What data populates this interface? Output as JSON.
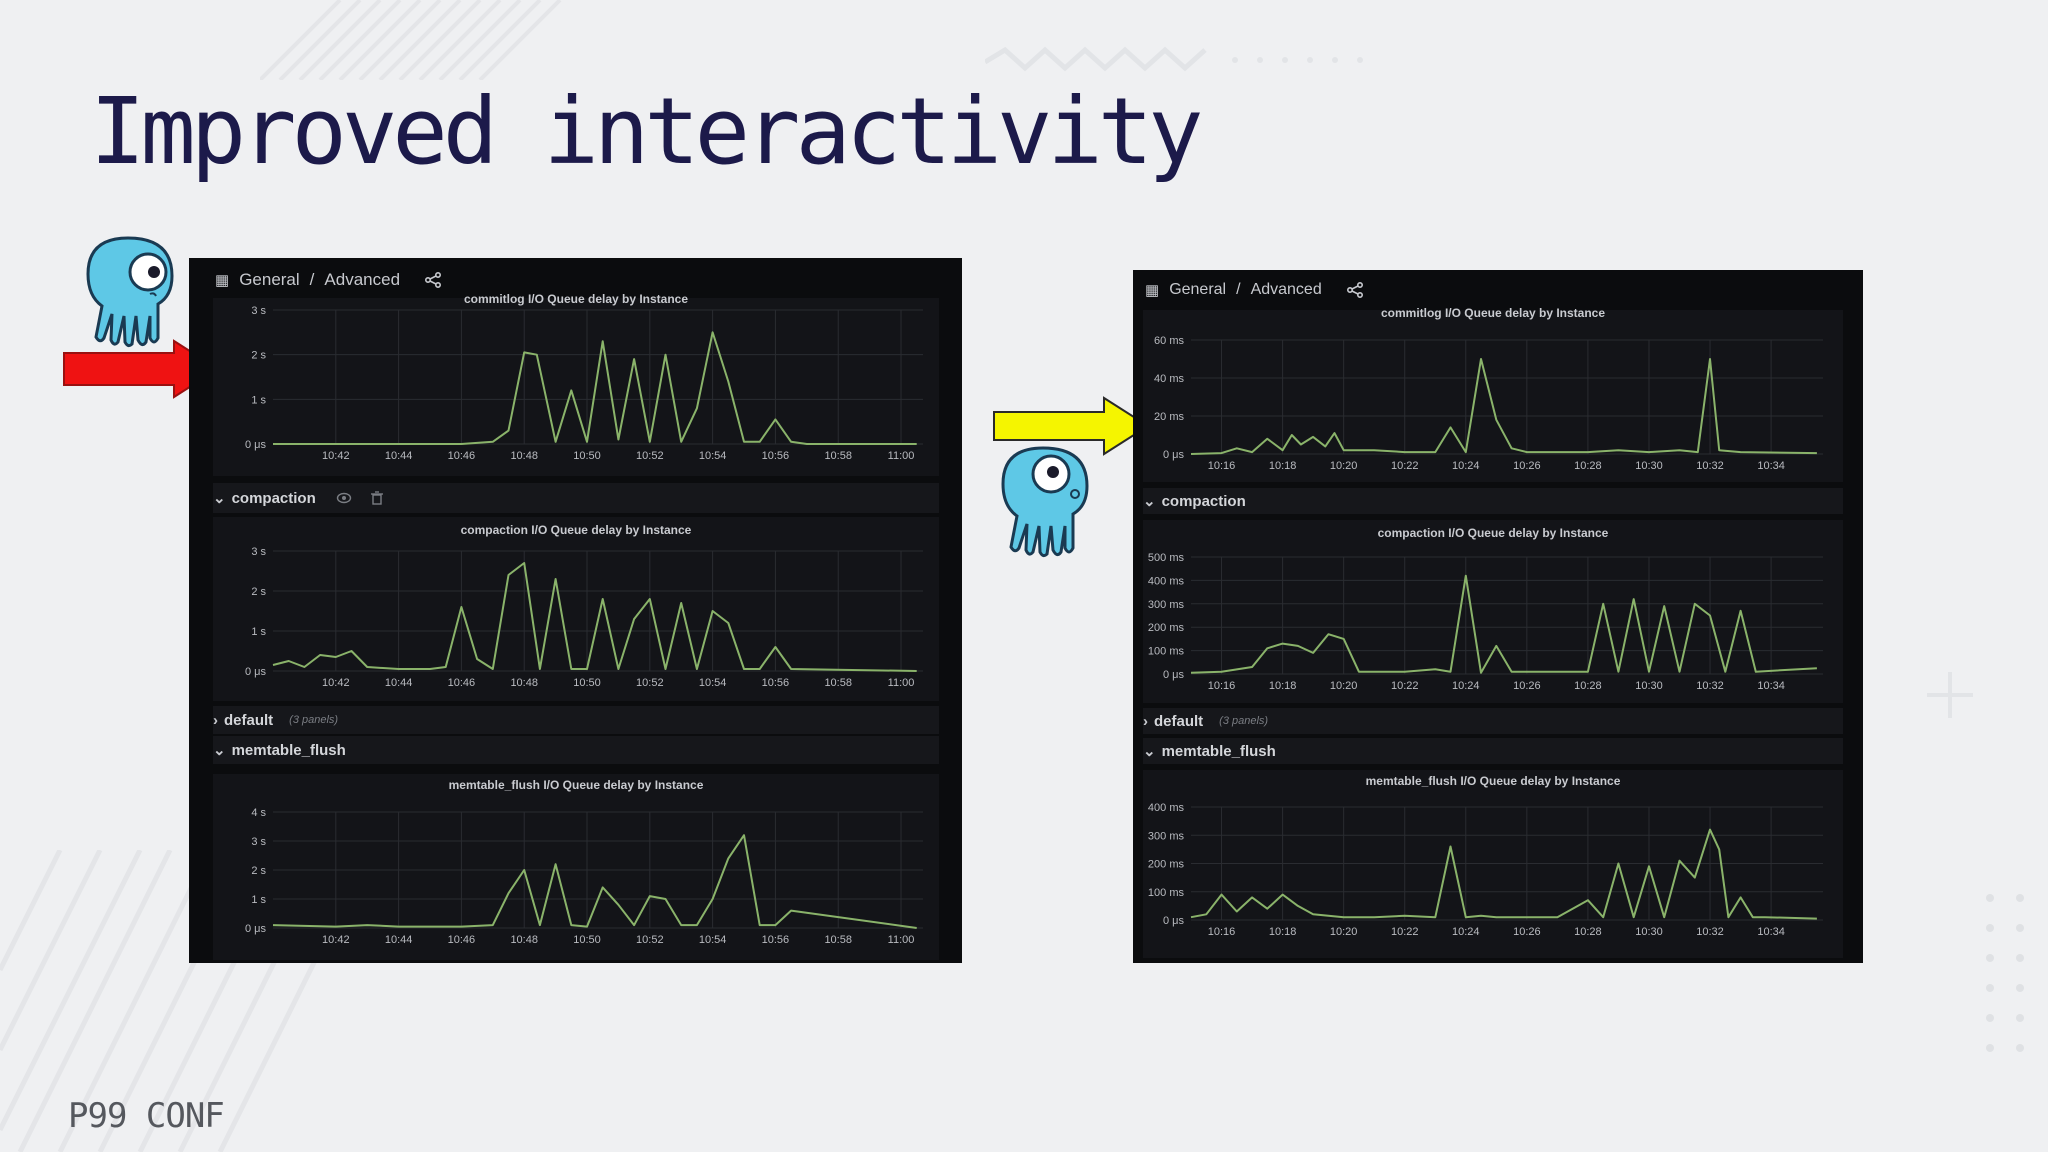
{
  "slide": {
    "title": "Improved interactivity",
    "footer": "P99 CONF"
  },
  "colors": {
    "title": "#1c1a4a",
    "line": "#8ab36a",
    "red_arrow": "#ef1212",
    "yellow_arrow": "#f5f500",
    "mascot": "#5ec8e6"
  },
  "dashboards": [
    {
      "breadcrumb": [
        "General",
        "/",
        "Advanced"
      ],
      "share_icon": "share-icon",
      "panels": [
        {
          "title": "commitlog I/O Queue delay by Instance",
          "yticks": [
            "3 s",
            "2 s",
            "1 s",
            "0 μs"
          ],
          "xticks": [
            "10:42",
            "10:44",
            "10:46",
            "10:48",
            "10:50",
            "10:52",
            "10:54",
            "10:56",
            "10:58",
            "11:00"
          ],
          "chart_data": {
            "type": "line",
            "unit": "s",
            "ylim": [
              0,
              3
            ],
            "x": [
              "10:40",
              "10:41",
              "10:42",
              "10:43",
              "10:44",
              "10:45",
              "10:46",
              "10:47",
              "10:47.5",
              "10:48",
              "10:48.4",
              "10:49",
              "10:49.5",
              "10:50",
              "10:50.5",
              "10:51",
              "10:51.5",
              "10:52",
              "10:52.5",
              "10:53",
              "10:53.5",
              "10:54",
              "10:54.5",
              "10:55",
              "10:55.5",
              "10:56",
              "10:56.5",
              "10:57",
              "11:00.5"
            ],
            "y": [
              0,
              0,
              0,
              0,
              0,
              0,
              0,
              0.05,
              0.3,
              2.05,
              2.0,
              0.05,
              1.2,
              0.05,
              2.3,
              0.1,
              1.9,
              0.05,
              2.0,
              0.05,
              0.8,
              2.5,
              1.4,
              0.05,
              0.05,
              0.55,
              0.05,
              0,
              0
            ]
          }
        }
      ],
      "rows": [
        {
          "label": "compaction",
          "note": "",
          "icons": [
            "eye-icon",
            "trash-icon"
          ]
        },
        {
          "label": "default",
          "note": "(3 panels)"
        },
        {
          "label": "memtable_flush",
          "note": ""
        }
      ],
      "panels2": [
        {
          "title": "compaction I/O Queue delay by Instance",
          "yticks": [
            "3 s",
            "2 s",
            "1 s",
            "0 μs"
          ],
          "xticks": [
            "10:42",
            "10:44",
            "10:46",
            "10:48",
            "10:50",
            "10:52",
            "10:54",
            "10:56",
            "10:58",
            "11:00"
          ],
          "chart_data": {
            "type": "line",
            "unit": "s",
            "ylim": [
              0,
              3
            ],
            "x": [
              "10:40",
              "10:40.5",
              "10:41",
              "10:41.5",
              "10:42",
              "10:42.5",
              "10:43",
              "10:44",
              "10:45",
              "10:45.5",
              "10:46",
              "10:46.5",
              "10:47",
              "10:47.5",
              "10:48",
              "10:48.5",
              "10:49",
              "10:49.5",
              "10:50",
              "10:50.5",
              "10:51",
              "10:51.5",
              "10:52",
              "10:52.5",
              "10:53",
              "10:53.5",
              "10:54",
              "10:54.5",
              "10:55",
              "10:55.5",
              "10:56",
              "10:56.5",
              "11:00.5"
            ],
            "y": [
              0.15,
              0.25,
              0.1,
              0.4,
              0.35,
              0.5,
              0.1,
              0.05,
              0.05,
              0.1,
              1.6,
              0.3,
              0.05,
              2.4,
              2.7,
              0.05,
              2.3,
              0.05,
              0.05,
              1.8,
              0.05,
              1.3,
              1.8,
              0.05,
              1.7,
              0.05,
              1.5,
              1.2,
              0.05,
              0.05,
              0.6,
              0.05,
              0
            ]
          }
        },
        {
          "title": "memtable_flush I/O Queue delay by Instance",
          "yticks": [
            "4 s",
            "3 s",
            "2 s",
            "1 s",
            "0 μs"
          ],
          "xticks": [
            "10:42",
            "10:44",
            "10:46",
            "10:48",
            "10:50",
            "10:52",
            "10:54",
            "10:56",
            "10:58",
            "11:00"
          ],
          "chart_data": {
            "type": "line",
            "unit": "s",
            "ylim": [
              0,
              4
            ],
            "x": [
              "10:40",
              "10:42",
              "10:43",
              "10:44",
              "10:46",
              "10:47",
              "10:47.5",
              "10:48",
              "10:48.5",
              "10:49",
              "10:49.5",
              "10:50",
              "10:50.5",
              "10:51",
              "10:51.5",
              "10:52",
              "10:52.5",
              "10:53",
              "10:53.5",
              "10:54",
              "10:54.5",
              "10:55",
              "10:55.5",
              "10:56",
              "10:56.5",
              "11:00.5"
            ],
            "y": [
              0.1,
              0.05,
              0.1,
              0.05,
              0.05,
              0.1,
              1.2,
              2.0,
              0.1,
              2.2,
              0.1,
              0.05,
              1.4,
              0.8,
              0.1,
              1.1,
              1.0,
              0.1,
              0.1,
              1.0,
              2.4,
              3.2,
              0.1,
              0.1,
              0.6,
              0
            ]
          }
        }
      ]
    },
    {
      "breadcrumb": [
        "General",
        "/",
        "Advanced"
      ],
      "share_icon": "share-icon",
      "panels": [
        {
          "title": "commitlog I/O Queue delay by Instance",
          "yticks": [
            "60 ms",
            "40 ms",
            "20 ms",
            "0 μs"
          ],
          "xticks": [
            "10:16",
            "10:18",
            "10:20",
            "10:22",
            "10:24",
            "10:26",
            "10:28",
            "10:30",
            "10:32",
            "10:34"
          ],
          "chart_data": {
            "type": "line",
            "unit": "ms",
            "ylim": [
              0,
              60
            ],
            "x": [
              "10:15",
              "10:16",
              "10:16.5",
              "10:17",
              "10:17.5",
              "10:18",
              "10:18.3",
              "10:18.6",
              "10:19",
              "10:19.4",
              "10:19.7",
              "10:20",
              "10:21",
              "10:22",
              "10:23",
              "10:23.5",
              "10:24",
              "10:24.5",
              "10:25",
              "10:25.5",
              "10:26",
              "10:27",
              "10:28",
              "10:29",
              "10:30",
              "10:31",
              "10:31.6",
              "10:32",
              "10:32.3",
              "10:33",
              "10:35.5"
            ],
            "y": [
              0,
              0.5,
              3,
              1,
              8,
              2,
              10,
              5,
              9,
              4,
              11,
              2,
              2,
              1,
              1,
              14,
              1,
              50,
              18,
              3,
              1,
              1,
              1,
              2,
              1,
              2,
              1,
              50,
              2,
              1,
              0.5
            ]
          }
        }
      ],
      "rows": [
        {
          "label": "compaction",
          "note": ""
        },
        {
          "label": "default",
          "note": "(3 panels)"
        },
        {
          "label": "memtable_flush",
          "note": ""
        }
      ],
      "panels2": [
        {
          "title": "compaction I/O Queue delay by Instance",
          "yticks": [
            "500 ms",
            "400 ms",
            "300 ms",
            "200 ms",
            "100 ms",
            "0 μs"
          ],
          "xticks": [
            "10:16",
            "10:18",
            "10:20",
            "10:22",
            "10:24",
            "10:26",
            "10:28",
            "10:30",
            "10:32",
            "10:34"
          ],
          "chart_data": {
            "type": "line",
            "unit": "ms",
            "ylim": [
              0,
              500
            ],
            "x": [
              "10:15",
              "10:16",
              "10:17",
              "10:17.5",
              "10:18",
              "10:18.5",
              "10:19",
              "10:19.5",
              "10:20",
              "10:20.5",
              "10:21",
              "10:22",
              "10:23",
              "10:23.5",
              "10:24",
              "10:24.5",
              "10:25",
              "10:25.5",
              "10:26",
              "10:27",
              "10:28",
              "10:28.5",
              "10:29",
              "10:29.5",
              "10:30",
              "10:30.5",
              "10:31",
              "10:31.5",
              "10:32",
              "10:32.5",
              "10:33",
              "10:33.5",
              "10:35.5"
            ],
            "y": [
              5,
              10,
              30,
              110,
              130,
              120,
              90,
              170,
              150,
              10,
              10,
              10,
              20,
              10,
              420,
              5,
              120,
              10,
              10,
              10,
              10,
              300,
              10,
              320,
              10,
              290,
              10,
              300,
              250,
              10,
              270,
              10,
              25
            ]
          }
        },
        {
          "title": "memtable_flush I/O Queue delay by Instance",
          "yticks": [
            "400 ms",
            "300 ms",
            "200 ms",
            "100 ms",
            "0 μs"
          ],
          "xticks": [
            "10:16",
            "10:18",
            "10:20",
            "10:22",
            "10:24",
            "10:26",
            "10:28",
            "10:30",
            "10:32",
            "10:34"
          ],
          "chart_data": {
            "type": "line",
            "unit": "ms",
            "ylim": [
              0,
              400
            ],
            "x": [
              "10:15",
              "10:15.5",
              "10:16",
              "10:16.5",
              "10:17",
              "10:17.5",
              "10:18",
              "10:18.5",
              "10:19",
              "10:20",
              "10:21",
              "10:22",
              "10:23",
              "10:23.5",
              "10:24",
              "10:24.5",
              "10:25",
              "10:26",
              "10:27",
              "10:28",
              "10:28.5",
              "10:29",
              "10:29.5",
              "10:30",
              "10:30.5",
              "10:31",
              "10:31.5",
              "10:32",
              "10:32.3",
              "10:32.6",
              "10:33",
              "10:33.4",
              "10:33.8",
              "10:35.5"
            ],
            "y": [
              10,
              20,
              90,
              30,
              80,
              40,
              90,
              50,
              20,
              10,
              10,
              15,
              10,
              260,
              10,
              15,
              10,
              10,
              10,
              70,
              10,
              200,
              10,
              190,
              10,
              210,
              150,
              320,
              250,
              10,
              80,
              10,
              10,
              5
            ]
          }
        }
      ]
    }
  ]
}
